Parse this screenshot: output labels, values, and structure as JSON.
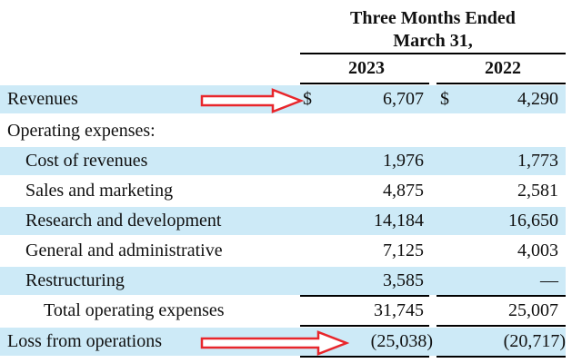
{
  "header": {
    "period_line1": "Three Months Ended",
    "period_line2": "March 31,",
    "year_current": "2023",
    "year_prior": "2022"
  },
  "currency_symbol": "$",
  "rows": [
    {
      "label": "Revenues",
      "v2023": "6,707",
      "v2022": "4,290"
    },
    {
      "label": "Operating expenses:",
      "v2023": "",
      "v2022": ""
    },
    {
      "label": "Cost of revenues",
      "v2023": "1,976",
      "v2022": "1,773"
    },
    {
      "label": "Sales and marketing",
      "v2023": "4,875",
      "v2022": "2,581"
    },
    {
      "label": "Research and development",
      "v2023": "14,184",
      "v2022": "16,650"
    },
    {
      "label": "General and administrative",
      "v2023": "7,125",
      "v2022": "4,003"
    },
    {
      "label": "Restructuring",
      "v2023": "3,585",
      "v2022": "—"
    },
    {
      "label": "Total operating expenses",
      "v2023": "31,745",
      "v2022": "25,007"
    },
    {
      "label": "Loss from operations",
      "v2023": "(25,038)",
      "v2022": "(20,717)"
    }
  ],
  "colors": {
    "row_shade": "#cdeaf7",
    "arrow": "#e8262b"
  }
}
